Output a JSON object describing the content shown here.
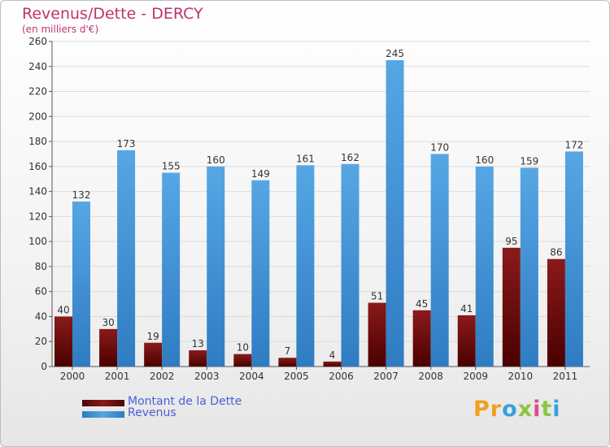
{
  "title": "Revenus/Dette - DERCY",
  "subtitle": "(en milliers d'€)",
  "colors": {
    "dette": "#8b1a1a",
    "revenus": "#56a6e4"
  },
  "logo": {
    "text": "Proxiti",
    "letters": [
      "P",
      "r",
      "o",
      "x",
      "i",
      "t",
      "i"
    ],
    "letter_colors": [
      "#f0a020",
      "#f0a020",
      "#3aa0e0",
      "#8cc63f",
      "#e04a8c",
      "#8cc63f",
      "#3aa0e0"
    ]
  },
  "chart_data": {
    "type": "bar",
    "title": "Revenus/Dette - DERCY",
    "ylabel": "(en milliers d'€)",
    "xlabel": "",
    "ylim": [
      0,
      260
    ],
    "yticks": [
      0,
      20,
      40,
      60,
      80,
      100,
      120,
      140,
      160,
      180,
      200,
      220,
      240,
      260
    ],
    "grid": true,
    "legend_position": "bottom-left",
    "categories": [
      "2000",
      "2001",
      "2002",
      "2003",
      "2004",
      "2005",
      "2006",
      "2007",
      "2008",
      "2009",
      "2010",
      "2011"
    ],
    "series": [
      {
        "name": "Montant de la Dette",
        "values": [
          40,
          30,
          19,
          13,
          10,
          7,
          4,
          51,
          45,
          41,
          95,
          86
        ]
      },
      {
        "name": "Revenus",
        "values": [
          132,
          173,
          155,
          160,
          149,
          161,
          162,
          245,
          170,
          160,
          159,
          172
        ]
      }
    ]
  }
}
